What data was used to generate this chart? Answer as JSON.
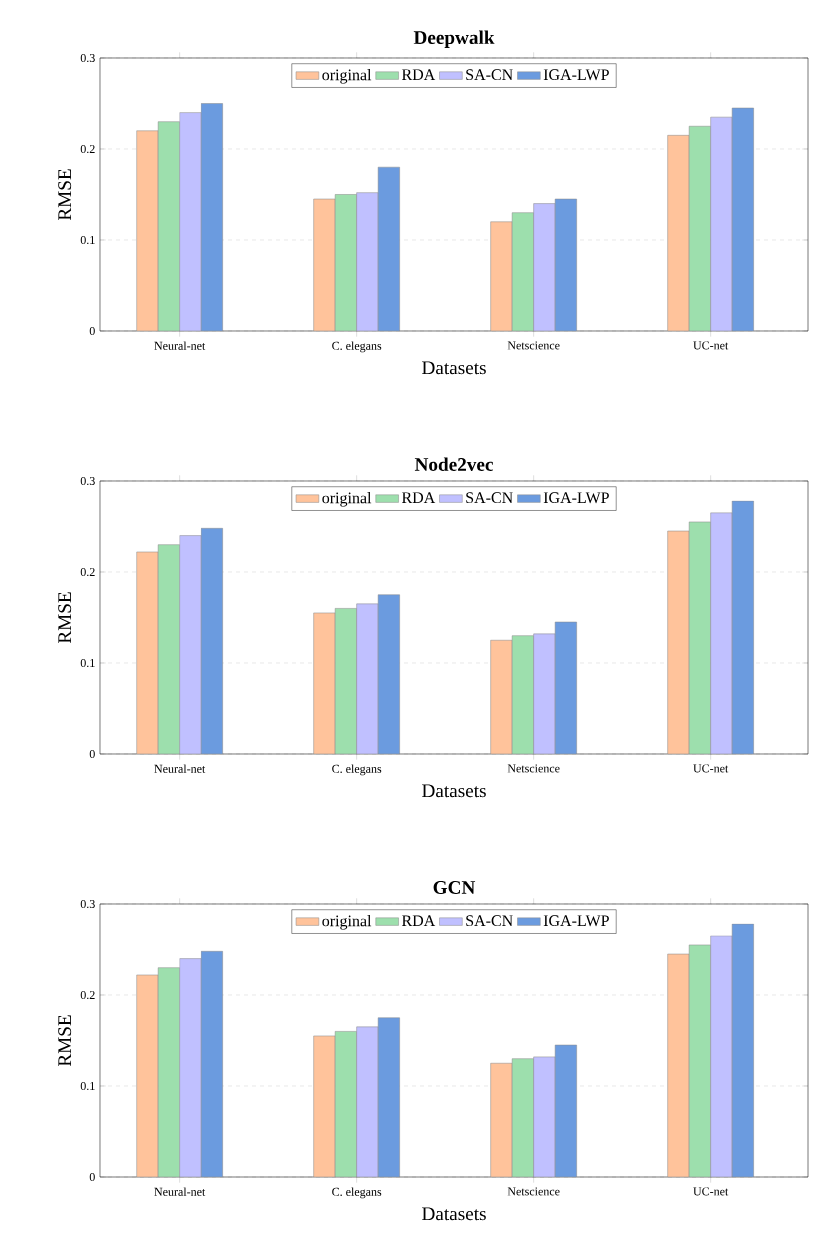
{
  "chart_data": [
    {
      "type": "bar",
      "title": "**Deepwalk**",
      "xlabel": "Datasets",
      "ylabel": "RMSE",
      "categories": [
        "Neural-net",
        "C. elegans",
        "Netscience",
        "UC-net"
      ],
      "ylim": [
        0,
        0.3
      ],
      "yticks": [
        0,
        0.1,
        0.2,
        0.3
      ],
      "grid": "y",
      "legend": "top",
      "series": [
        {
          "name": "original",
          "color": "#ffc39b",
          "values": [
            0.22,
            0.145,
            0.12,
            0.215
          ]
        },
        {
          "name": "RDA",
          "color": "#9ddfad",
          "values": [
            0.23,
            0.15,
            0.13,
            0.225
          ]
        },
        {
          "name": "SA-CN",
          "color": "#c0c0ff",
          "values": [
            0.24,
            0.152,
            0.14,
            0.235
          ]
        },
        {
          "name": "IGA-LWP",
          "color": "#6b9bdf",
          "values": [
            0.25,
            0.18,
            0.145,
            0.245
          ]
        }
      ]
    },
    {
      "type": "bar",
      "title": "**Node2vec**",
      "xlabel": "Datasets",
      "ylabel": "RMSE",
      "categories": [
        "Neural-net",
        "C. elegans",
        "Netscience",
        "UC-net"
      ],
      "ylim": [
        0,
        0.3
      ],
      "yticks": [
        0,
        0.1,
        0.2,
        0.3
      ],
      "grid": "y",
      "legend": "top",
      "series": [
        {
          "name": "original",
          "color": "#ffc39b",
          "values": [
            0.222,
            0.155,
            0.125,
            0.245
          ]
        },
        {
          "name": "RDA",
          "color": "#9ddfad",
          "values": [
            0.23,
            0.16,
            0.13,
            0.255
          ]
        },
        {
          "name": "SA-CN",
          "color": "#c0c0ff",
          "values": [
            0.24,
            0.165,
            0.132,
            0.265
          ]
        },
        {
          "name": "IGA-LWP",
          "color": "#6b9bdf",
          "values": [
            0.248,
            0.175,
            0.145,
            0.278
          ]
        }
      ]
    },
    {
      "type": "bar",
      "title": "**GCN**",
      "xlabel": "Datasets",
      "ylabel": "RMSE",
      "categories": [
        "Neural-net",
        "C. elegans",
        "Netscience",
        "UC-net"
      ],
      "ylim": [
        0,
        0.3
      ],
      "yticks": [
        0,
        0.1,
        0.2,
        0.3
      ],
      "grid": "y",
      "legend": "top",
      "series": [
        {
          "name": "original",
          "color": "#ffc39b",
          "values": [
            0.222,
            0.155,
            0.125,
            0.245
          ]
        },
        {
          "name": "RDA",
          "color": "#9ddfad",
          "values": [
            0.23,
            0.16,
            0.13,
            0.255
          ]
        },
        {
          "name": "SA-CN",
          "color": "#c0c0ff",
          "values": [
            0.24,
            0.165,
            0.132,
            0.265
          ]
        },
        {
          "name": "IGA-LWP",
          "color": "#6b9bdf",
          "values": [
            0.248,
            0.175,
            0.145,
            0.278
          ]
        }
      ]
    }
  ]
}
